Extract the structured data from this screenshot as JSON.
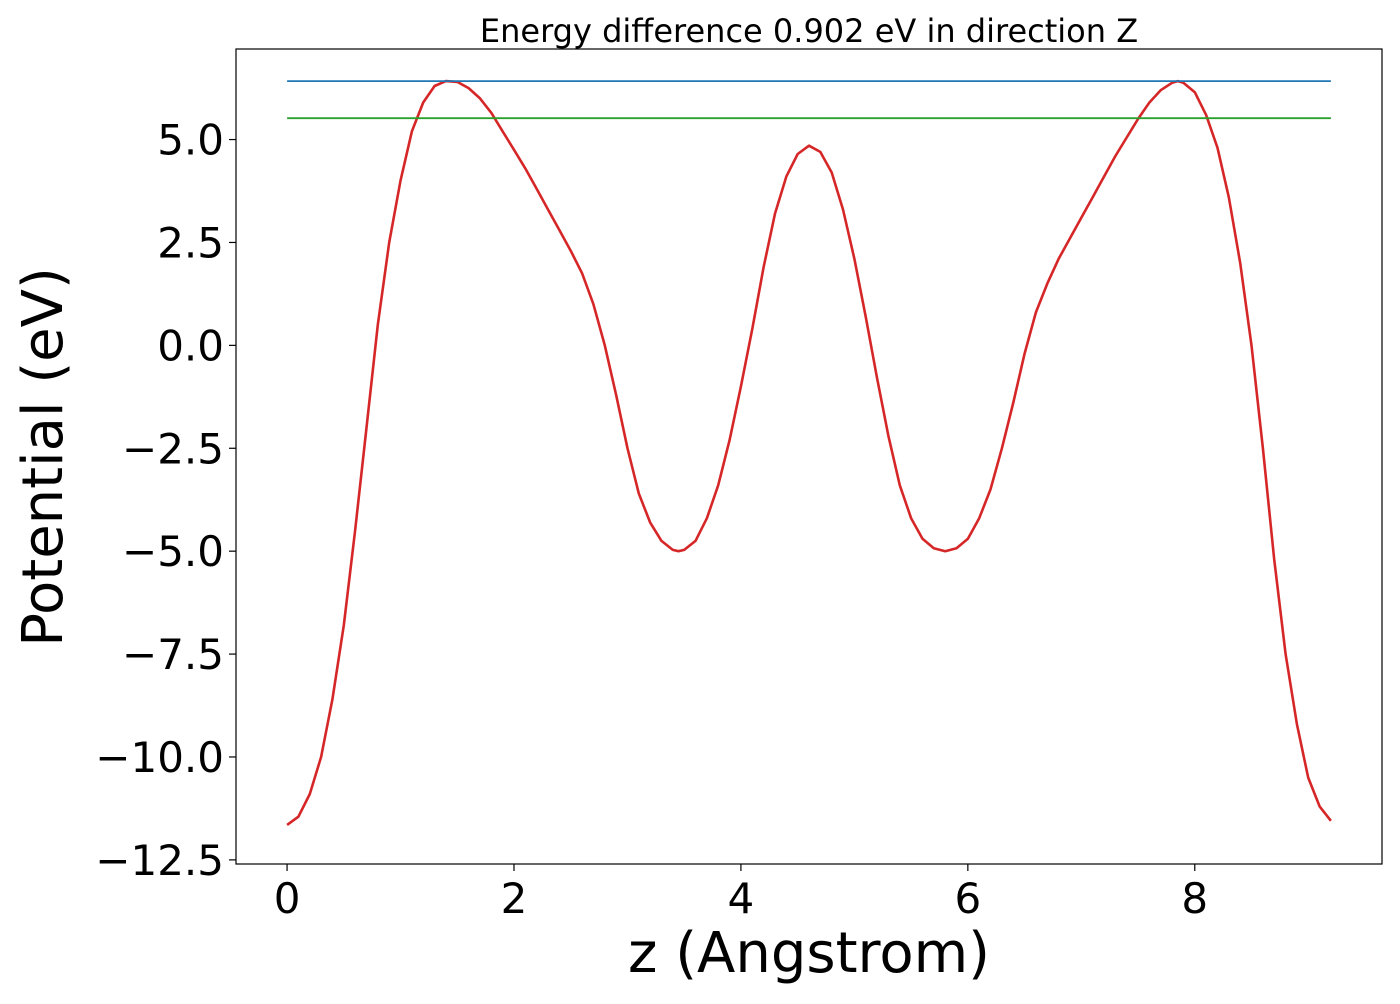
{
  "chart_data": {
    "type": "line",
    "title": "Energy difference 0.902 eV in direction Z",
    "xlabel": "z (Angstrom)",
    "ylabel": "Potential (eV)",
    "xlim": [
      -0.45,
      9.65
    ],
    "ylim": [
      -12.6,
      7.2
    ],
    "xticks": [
      0,
      2,
      4,
      6,
      8
    ],
    "xtick_labels": [
      "0",
      "2",
      "4",
      "6",
      "8"
    ],
    "yticks": [
      -12.5,
      -10.0,
      -7.5,
      -5.0,
      -2.5,
      0.0,
      2.5,
      5.0
    ],
    "ytick_labels": [
      "−12.5",
      "−10.0",
      "−7.5",
      "−5.0",
      "−2.5",
      "0.0",
      "2.5",
      "5.0"
    ],
    "grid": false,
    "series": [
      {
        "color": "#d62728",
        "points": [
          [
            0.0,
            -11.65
          ],
          [
            0.1,
            -11.45
          ],
          [
            0.2,
            -10.9
          ],
          [
            0.3,
            -10.0
          ],
          [
            0.4,
            -8.6
          ],
          [
            0.5,
            -6.8
          ],
          [
            0.6,
            -4.5
          ],
          [
            0.7,
            -2.0
          ],
          [
            0.8,
            0.5
          ],
          [
            0.9,
            2.5
          ],
          [
            1.0,
            4.0
          ],
          [
            1.1,
            5.2
          ],
          [
            1.2,
            5.9
          ],
          [
            1.3,
            6.3
          ],
          [
            1.4,
            6.42
          ],
          [
            1.5,
            6.4
          ],
          [
            1.6,
            6.25
          ],
          [
            1.7,
            6.0
          ],
          [
            1.8,
            5.65
          ],
          [
            1.9,
            5.2
          ],
          [
            2.0,
            4.75
          ],
          [
            2.1,
            4.3
          ],
          [
            2.2,
            3.8
          ],
          [
            2.3,
            3.3
          ],
          [
            2.4,
            2.8
          ],
          [
            2.5,
            2.3
          ],
          [
            2.6,
            1.75
          ],
          [
            2.7,
            1.0
          ],
          [
            2.8,
            0.0
          ],
          [
            2.9,
            -1.2
          ],
          [
            3.0,
            -2.5
          ],
          [
            3.1,
            -3.6
          ],
          [
            3.2,
            -4.3
          ],
          [
            3.3,
            -4.75
          ],
          [
            3.4,
            -4.97
          ],
          [
            3.45,
            -5.0
          ],
          [
            3.5,
            -4.97
          ],
          [
            3.6,
            -4.75
          ],
          [
            3.7,
            -4.2
          ],
          [
            3.8,
            -3.4
          ],
          [
            3.9,
            -2.3
          ],
          [
            4.0,
            -1.0
          ],
          [
            4.1,
            0.4
          ],
          [
            4.2,
            1.9
          ],
          [
            4.3,
            3.2
          ],
          [
            4.4,
            4.1
          ],
          [
            4.5,
            4.65
          ],
          [
            4.6,
            4.85
          ],
          [
            4.7,
            4.7
          ],
          [
            4.8,
            4.2
          ],
          [
            4.9,
            3.3
          ],
          [
            5.0,
            2.1
          ],
          [
            5.1,
            0.7
          ],
          [
            5.2,
            -0.8
          ],
          [
            5.3,
            -2.2
          ],
          [
            5.4,
            -3.4
          ],
          [
            5.5,
            -4.2
          ],
          [
            5.6,
            -4.7
          ],
          [
            5.7,
            -4.93
          ],
          [
            5.8,
            -5.0
          ],
          [
            5.9,
            -4.93
          ],
          [
            6.0,
            -4.7
          ],
          [
            6.1,
            -4.2
          ],
          [
            6.2,
            -3.5
          ],
          [
            6.3,
            -2.5
          ],
          [
            6.4,
            -1.4
          ],
          [
            6.5,
            -0.2
          ],
          [
            6.6,
            0.8
          ],
          [
            6.7,
            1.5
          ],
          [
            6.8,
            2.1
          ],
          [
            6.9,
            2.6
          ],
          [
            7.0,
            3.1
          ],
          [
            7.1,
            3.6
          ],
          [
            7.2,
            4.1
          ],
          [
            7.3,
            4.6
          ],
          [
            7.4,
            5.05
          ],
          [
            7.5,
            5.5
          ],
          [
            7.6,
            5.9
          ],
          [
            7.7,
            6.2
          ],
          [
            7.8,
            6.38
          ],
          [
            7.85,
            6.42
          ],
          [
            7.9,
            6.38
          ],
          [
            8.0,
            6.15
          ],
          [
            8.1,
            5.6
          ],
          [
            8.2,
            4.8
          ],
          [
            8.3,
            3.6
          ],
          [
            8.4,
            2.0
          ],
          [
            8.5,
            0.0
          ],
          [
            8.6,
            -2.5
          ],
          [
            8.7,
            -5.2
          ],
          [
            8.8,
            -7.5
          ],
          [
            8.9,
            -9.2
          ],
          [
            9.0,
            -10.5
          ],
          [
            9.1,
            -11.2
          ],
          [
            9.2,
            -11.55
          ]
        ]
      },
      {
        "color": "#1f77b4",
        "points": [
          [
            0.0,
            6.42
          ],
          [
            9.2,
            6.42
          ]
        ]
      },
      {
        "color": "#2ca02c",
        "points": [
          [
            0.0,
            5.52
          ],
          [
            9.2,
            5.52
          ]
        ]
      }
    ]
  }
}
